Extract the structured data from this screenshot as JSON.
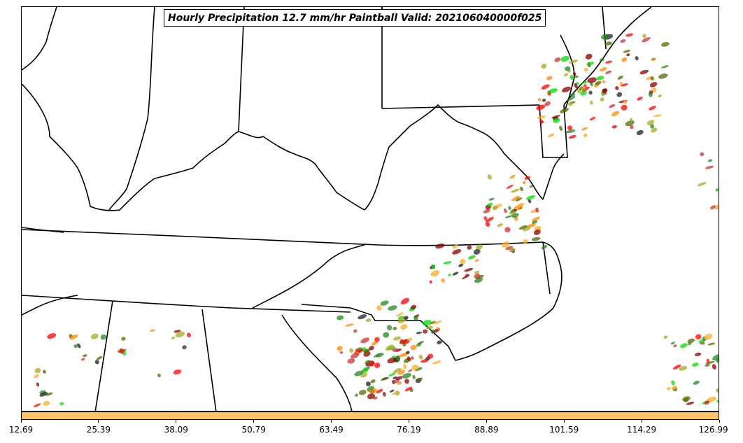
{
  "title": "Hourly Precipitation 12.7 mm/hr Paintball Valid: 202106040000f025",
  "colorbar": {
    "color": "#ffc266",
    "tick_labels": [
      "12.69",
      "25.39",
      "38.09",
      "50.79",
      "63.49",
      "76.19",
      "88.89",
      "101.59",
      "114.29",
      "126.99"
    ]
  },
  "paintball_colors": [
    "#ff0000",
    "#ff8800",
    "#00dd00",
    "#556b00",
    "#880000",
    "#222222",
    "#aaaa22",
    "#ffaa22",
    "#228822",
    "#cc3333"
  ]
}
